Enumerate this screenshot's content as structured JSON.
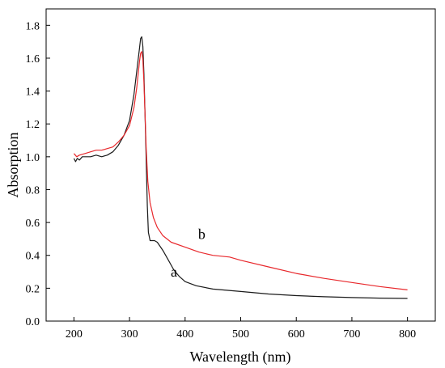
{
  "chart_data": {
    "type": "line",
    "xlabel": "Wavelength (nm)",
    "ylabel": "Absorption",
    "xlim": [
      150,
      850
    ],
    "ylim": [
      0.0,
      1.9
    ],
    "xticks": [
      200,
      300,
      400,
      500,
      600,
      700,
      800
    ],
    "yticks": [
      0.0,
      0.2,
      0.4,
      0.6,
      0.8,
      1.0,
      1.2,
      1.4,
      1.6,
      1.8
    ],
    "grid": false,
    "legend": "none",
    "series": [
      {
        "name": "a",
        "color": "#1a1a1a",
        "label_at": [
          380,
          0.27
        ],
        "points": [
          [
            200,
            0.99
          ],
          [
            203,
            0.97
          ],
          [
            206,
            0.99
          ],
          [
            210,
            0.98
          ],
          [
            215,
            1.0
          ],
          [
            220,
            1.0
          ],
          [
            230,
            1.0
          ],
          [
            240,
            1.01
          ],
          [
            250,
            1.0
          ],
          [
            260,
            1.01
          ],
          [
            270,
            1.03
          ],
          [
            280,
            1.07
          ],
          [
            290,
            1.13
          ],
          [
            300,
            1.22
          ],
          [
            308,
            1.38
          ],
          [
            313,
            1.52
          ],
          [
            318,
            1.66
          ],
          [
            320,
            1.72
          ],
          [
            322,
            1.73
          ],
          [
            324,
            1.67
          ],
          [
            326,
            1.5
          ],
          [
            328,
            1.25
          ],
          [
            330,
            0.98
          ],
          [
            332,
            0.7
          ],
          [
            334,
            0.54
          ],
          [
            337,
            0.49
          ],
          [
            341,
            0.49
          ],
          [
            345,
            0.49
          ],
          [
            350,
            0.48
          ],
          [
            360,
            0.43
          ],
          [
            370,
            0.37
          ],
          [
            380,
            0.31
          ],
          [
            390,
            0.27
          ],
          [
            400,
            0.24
          ],
          [
            420,
            0.215
          ],
          [
            450,
            0.195
          ],
          [
            500,
            0.18
          ],
          [
            550,
            0.165
          ],
          [
            600,
            0.155
          ],
          [
            650,
            0.148
          ],
          [
            700,
            0.143
          ],
          [
            750,
            0.14
          ],
          [
            800,
            0.138
          ]
        ]
      },
      {
        "name": "b",
        "color": "#e8282c",
        "label_at": [
          430,
          0.5
        ],
        "points": [
          [
            200,
            1.02
          ],
          [
            205,
            1.0
          ],
          [
            210,
            1.01
          ],
          [
            220,
            1.02
          ],
          [
            230,
            1.03
          ],
          [
            240,
            1.04
          ],
          [
            250,
            1.04
          ],
          [
            260,
            1.05
          ],
          [
            270,
            1.06
          ],
          [
            280,
            1.09
          ],
          [
            290,
            1.13
          ],
          [
            300,
            1.19
          ],
          [
            308,
            1.3
          ],
          [
            313,
            1.42
          ],
          [
            318,
            1.58
          ],
          [
            320,
            1.63
          ],
          [
            322,
            1.64
          ],
          [
            324,
            1.59
          ],
          [
            326,
            1.45
          ],
          [
            328,
            1.25
          ],
          [
            330,
            1.05
          ],
          [
            333,
            0.85
          ],
          [
            337,
            0.72
          ],
          [
            343,
            0.63
          ],
          [
            350,
            0.57
          ],
          [
            360,
            0.52
          ],
          [
            375,
            0.48
          ],
          [
            400,
            0.45
          ],
          [
            425,
            0.42
          ],
          [
            450,
            0.4
          ],
          [
            480,
            0.39
          ],
          [
            500,
            0.37
          ],
          [
            550,
            0.33
          ],
          [
            600,
            0.29
          ],
          [
            650,
            0.26
          ],
          [
            700,
            0.235
          ],
          [
            750,
            0.21
          ],
          [
            800,
            0.19
          ]
        ]
      }
    ]
  }
}
